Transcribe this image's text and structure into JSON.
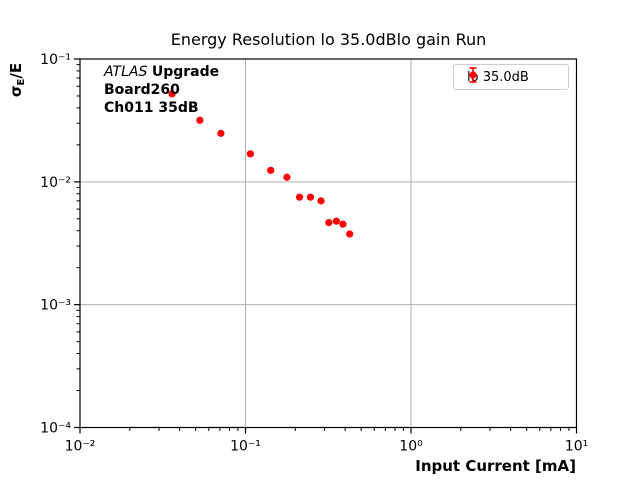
{
  "colors": {
    "accent": "#ff0000",
    "grid": "#b0b0b0",
    "spine": "#000000",
    "legend_border": "#cccccc",
    "background": "#ffffff"
  },
  "chart_data": {
    "type": "scatter",
    "title": "Energy Resolution lo 35.0dBlo gain Run",
    "xlabel": "Input Current [mA]",
    "ylabel": "σE/E",
    "ylabel_parts": {
      "sigma": "σ",
      "sub": "E",
      "rest": "/E"
    },
    "x_scale": "log",
    "y_scale": "log",
    "xlim": [
      0.01,
      10
    ],
    "ylim": [
      0.0001,
      0.1
    ],
    "grid": true,
    "x_ticks": {
      "values": [
        0.01,
        0.1,
        1,
        10
      ],
      "labels": [
        "10⁻²",
        "10⁻¹",
        "10⁰",
        "10¹"
      ]
    },
    "y_ticks": {
      "values": [
        0.1,
        0.01,
        0.001,
        0.0001
      ],
      "labels": [
        "10⁻¹",
        "10⁻²",
        "10⁻³",
        "10⁻⁴"
      ]
    },
    "legend_position": "upper right",
    "series": [
      {
        "name": "lo 35.0dB",
        "marker": "errorbar-dot",
        "x": [
          0.036,
          0.053,
          0.071,
          0.107,
          0.142,
          0.178,
          0.212,
          0.247,
          0.286,
          0.319,
          0.354,
          0.388,
          0.426
        ],
        "y": [
          0.052,
          0.0317,
          0.0248,
          0.0169,
          0.0124,
          0.0109,
          0.0075,
          0.0075,
          0.007,
          0.00466,
          0.00478,
          0.00452,
          0.00376
        ]
      }
    ]
  },
  "legend": {
    "label": "lo 35.0dB"
  },
  "annotation": {
    "line1_italic": "ATLAS",
    "line1_bold": "Upgrade",
    "line2": "Board260",
    "line3": "Ch011 35dB"
  }
}
